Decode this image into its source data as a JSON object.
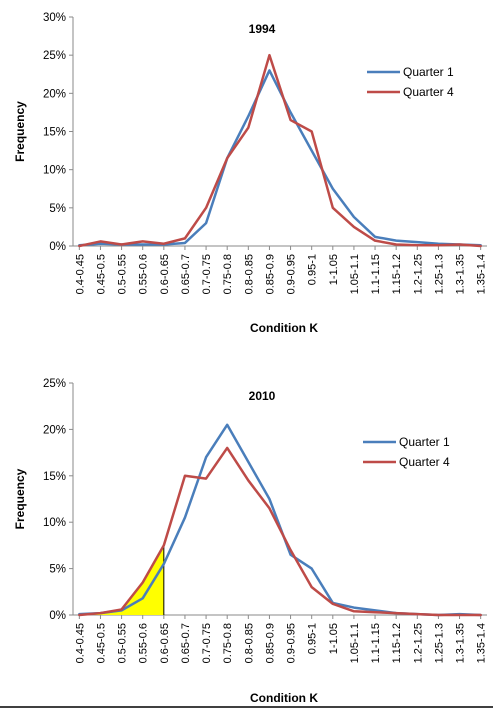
{
  "colors": {
    "quarter1": "#4a7ebb",
    "quarter4": "#be4b48",
    "highlight": "#ffff00",
    "axis": "#8a8a8a"
  },
  "chart_data": [
    {
      "type": "line",
      "title": "1994",
      "xlabel": "Condition K",
      "ylabel": "Frequency",
      "ylim": [
        0,
        30
      ],
      "ytick_labels": [
        "0%",
        "5%",
        "10%",
        "15%",
        "20%",
        "25%",
        "30%"
      ],
      "legend_position": "right",
      "categories": [
        "0.4-0.45",
        "0.45-0.5",
        "0.5-0.55",
        "0.55-0.6",
        "0.6-0.65",
        "0.65-0.7",
        "0.7-0.75",
        "0.75-0.8",
        "0.8-0.85",
        "0.85-0.9",
        "0.9-0.95",
        "0.95-1",
        "1-1.05",
        "1.05-1.1",
        "1.1-1.15",
        "1.15-1.2",
        "1.2-1.25",
        "1.25-1.3",
        "1.3-1.35",
        "1.35-1.4"
      ],
      "series": [
        {
          "name": "Quarter 1",
          "values": [
            0.1,
            0.3,
            0.2,
            0.2,
            0.2,
            0.4,
            3.0,
            11.5,
            17.0,
            23.0,
            17.5,
            12.5,
            7.5,
            3.8,
            1.2,
            0.7,
            0.5,
            0.3,
            0.2,
            0.1
          ]
        },
        {
          "name": "Quarter 4",
          "values": [
            0.0,
            0.6,
            0.2,
            0.6,
            0.3,
            1.0,
            5.0,
            11.5,
            15.5,
            25.0,
            16.5,
            15.0,
            5.0,
            2.5,
            0.7,
            0.2,
            0.1,
            0.1,
            0.2,
            0.0
          ]
        }
      ]
    },
    {
      "type": "line",
      "title": "2010",
      "xlabel": "Condition K",
      "ylabel": "Frequency",
      "ylim": [
        0,
        25
      ],
      "ytick_labels": [
        "0%",
        "5%",
        "10%",
        "15%",
        "20%",
        "25%"
      ],
      "legend_position": "right",
      "categories": [
        "0.4-0.45",
        "0.45-0.5",
        "0.5-0.55",
        "0.55-0.6",
        "0.6-0.65",
        "0.65-0.7",
        "0.7-0.75",
        "0.75-0.8",
        "0.8-0.85",
        "0.85-0.9",
        "0.9-0.95",
        "0.95-1",
        "1-1.05",
        "1.05-1.1",
        "1.1-1.15",
        "1.15-1.2",
        "1.2-1.25",
        "1.25-1.3",
        "1.3-1.35",
        "1.35-1.4"
      ],
      "series": [
        {
          "name": "Quarter 1",
          "values": [
            0.1,
            0.2,
            0.5,
            1.8,
            5.5,
            10.5,
            17.0,
            20.5,
            16.5,
            12.5,
            6.5,
            5.0,
            1.3,
            0.8,
            0.5,
            0.2,
            0.1,
            0.0,
            0.1,
            0.0
          ]
        },
        {
          "name": "Quarter 4",
          "values": [
            0.0,
            0.2,
            0.6,
            3.5,
            7.5,
            15.0,
            14.7,
            18.0,
            14.5,
            11.5,
            7.0,
            3.0,
            1.2,
            0.4,
            0.3,
            0.2,
            0.1,
            0.0,
            0.0,
            0.0
          ]
        }
      ],
      "highlight_shaded_through": "0.6-0.65"
    }
  ]
}
